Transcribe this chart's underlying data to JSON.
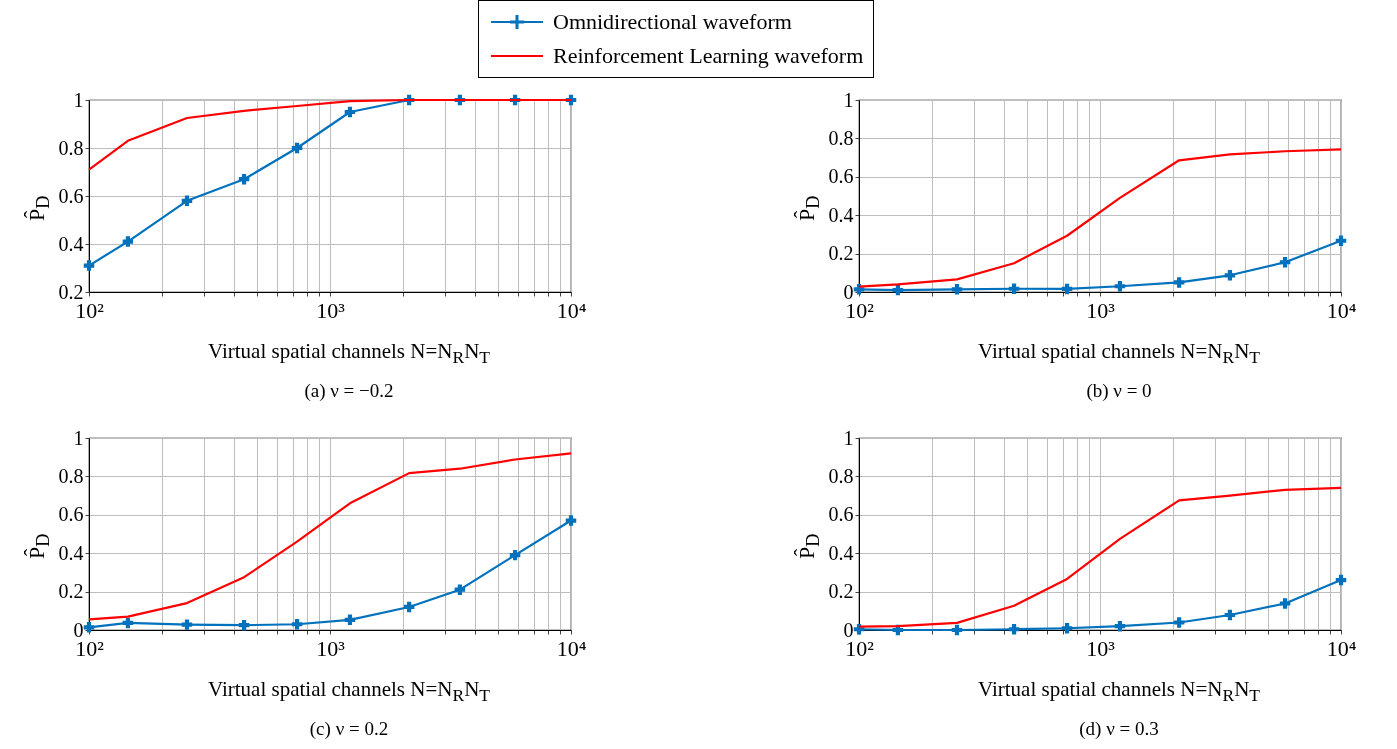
{
  "chart_data": [
    {
      "type": "line",
      "log": "x",
      "grid": true,
      "legend": "top",
      "xlabel": "Virtual spatial channels N=N$_{R}$N$_{T}$",
      "ylabel": "P̂$_{D}$",
      "annotations": [
        "(a) ν = −0.2"
      ],
      "xlim": [
        100,
        10000
      ],
      "xticks": [
        {
          "value": 100,
          "label": "10²"
        },
        {
          "value": 200,
          "label": null
        },
        {
          "value": 300,
          "label": null
        },
        {
          "value": 400,
          "label": null
        },
        {
          "value": 500,
          "label": null
        },
        {
          "value": 600,
          "label": null
        },
        {
          "value": 700,
          "label": null
        },
        {
          "value": 800,
          "label": null
        },
        {
          "value": 900,
          "label": null
        },
        {
          "value": 1000,
          "label": "10³"
        },
        {
          "value": 2000,
          "label": null
        },
        {
          "value": 3000,
          "label": null
        },
        {
          "value": 4000,
          "label": null
        },
        {
          "value": 5000,
          "label": null
        },
        {
          "value": 6000,
          "label": null
        },
        {
          "value": 7000,
          "label": null
        },
        {
          "value": 8000,
          "label": null
        },
        {
          "value": 9000,
          "label": null
        },
        {
          "value": 10000,
          "label": "10⁴"
        }
      ],
      "ylim": [
        0.2,
        1
      ],
      "yticks": [
        0.2,
        0.4,
        0.6,
        0.8,
        1
      ],
      "x": [
        100,
        145,
        255,
        440,
        730,
        1210,
        2130,
        3460,
        5860,
        10000
      ],
      "series": [
        {
          "name": "Omnidirectional waveform",
          "color": "#0072bd",
          "marker": "cross",
          "values": [
            0.31,
            0.41,
            0.58,
            0.67,
            0.8,
            0.95,
            1,
            1,
            1,
            1
          ]
        },
        {
          "name": "Reinforcement Learning waveform",
          "color": "#ff0000",
          "marker": "none",
          "values": [
            0.71,
            0.83,
            0.925,
            0.955,
            0.975,
            0.995,
            1,
            1,
            1,
            1
          ]
        }
      ]
    },
    {
      "type": "line",
      "log": "x",
      "grid": true,
      "xlabel": "Virtual spatial channels N=N$_{R}$N$_{T}$",
      "ylabel": "P̂$_{D}$",
      "annotations": [
        "(b) ν = 0"
      ],
      "xlim": [
        100,
        10000
      ],
      "xticks": [
        {
          "value": 100,
          "label": "10²"
        },
        {
          "value": 200,
          "label": null
        },
        {
          "value": 300,
          "label": null
        },
        {
          "value": 400,
          "label": null
        },
        {
          "value": 500,
          "label": null
        },
        {
          "value": 600,
          "label": null
        },
        {
          "value": 700,
          "label": null
        },
        {
          "value": 800,
          "label": null
        },
        {
          "value": 900,
          "label": null
        },
        {
          "value": 1000,
          "label": "10³"
        },
        {
          "value": 2000,
          "label": null
        },
        {
          "value": 3000,
          "label": null
        },
        {
          "value": 4000,
          "label": null
        },
        {
          "value": 5000,
          "label": null
        },
        {
          "value": 6000,
          "label": null
        },
        {
          "value": 7000,
          "label": null
        },
        {
          "value": 8000,
          "label": null
        },
        {
          "value": 9000,
          "label": null
        },
        {
          "value": 10000,
          "label": "10⁴"
        }
      ],
      "ylim": [
        0,
        1
      ],
      "yticks": [
        0,
        0.2,
        0.4,
        0.6,
        0.8,
        1
      ],
      "x": [
        100,
        145,
        255,
        440,
        730,
        1210,
        2130,
        3460,
        5860,
        10000
      ],
      "series": [
        {
          "color": "#0072bd",
          "marker": "cross",
          "values": [
            0.014,
            0.01,
            0.014,
            0.017,
            0.016,
            0.03,
            0.05,
            0.087,
            0.155,
            0.267
          ]
        },
        {
          "color": "#ff0000",
          "marker": "none",
          "values": [
            0.028,
            0.04,
            0.066,
            0.15,
            0.293,
            0.49,
            0.686,
            0.717,
            0.733,
            0.743
          ]
        }
      ]
    },
    {
      "type": "line",
      "log": "x",
      "grid": true,
      "xlabel": "Virtual spatial channels N=N$_{R}$N$_{T}$",
      "ylabel": "P̂$_{D}$",
      "annotations": [
        "(c) ν = 0.2"
      ],
      "xlim": [
        100,
        10000
      ],
      "xticks": [
        {
          "value": 100,
          "label": "10²"
        },
        {
          "value": 200,
          "label": null
        },
        {
          "value": 300,
          "label": null
        },
        {
          "value": 400,
          "label": null
        },
        {
          "value": 500,
          "label": null
        },
        {
          "value": 600,
          "label": null
        },
        {
          "value": 700,
          "label": null
        },
        {
          "value": 800,
          "label": null
        },
        {
          "value": 900,
          "label": null
        },
        {
          "value": 1000,
          "label": "10³"
        },
        {
          "value": 2000,
          "label": null
        },
        {
          "value": 3000,
          "label": null
        },
        {
          "value": 4000,
          "label": null
        },
        {
          "value": 5000,
          "label": null
        },
        {
          "value": 6000,
          "label": null
        },
        {
          "value": 7000,
          "label": null
        },
        {
          "value": 8000,
          "label": null
        },
        {
          "value": 9000,
          "label": null
        },
        {
          "value": 10000,
          "label": "10⁴"
        }
      ],
      "ylim": [
        0,
        1
      ],
      "yticks": [
        0,
        0.2,
        0.4,
        0.6,
        0.8,
        1
      ],
      "x": [
        100,
        145,
        255,
        440,
        730,
        1210,
        2130,
        3460,
        5860,
        10000
      ],
      "series": [
        {
          "color": "#0072bd",
          "marker": "cross",
          "values": [
            0.014,
            0.037,
            0.028,
            0.025,
            0.03,
            0.053,
            0.12,
            0.21,
            0.39,
            0.57
          ]
        },
        {
          "color": "#ff0000",
          "marker": "none",
          "values": [
            0.055,
            0.07,
            0.14,
            0.275,
            0.46,
            0.66,
            0.817,
            0.84,
            0.888,
            0.92
          ]
        }
      ]
    },
    {
      "type": "line",
      "log": "x",
      "grid": true,
      "xlabel": "Virtual spatial channels N=N$_{R}$N$_{T}$",
      "ylabel": "P̂$_{D}$",
      "annotations": [
        "(d) ν = 0.3"
      ],
      "xlim": [
        100,
        10000
      ],
      "xticks": [
        {
          "value": 100,
          "label": "10²"
        },
        {
          "value": 200,
          "label": null
        },
        {
          "value": 300,
          "label": null
        },
        {
          "value": 400,
          "label": null
        },
        {
          "value": 500,
          "label": null
        },
        {
          "value": 600,
          "label": null
        },
        {
          "value": 700,
          "label": null
        },
        {
          "value": 800,
          "label": null
        },
        {
          "value": 900,
          "label": null
        },
        {
          "value": 1000,
          "label": "10³"
        },
        {
          "value": 2000,
          "label": null
        },
        {
          "value": 3000,
          "label": null
        },
        {
          "value": 4000,
          "label": null
        },
        {
          "value": 5000,
          "label": null
        },
        {
          "value": 6000,
          "label": null
        },
        {
          "value": 7000,
          "label": null
        },
        {
          "value": 8000,
          "label": null
        },
        {
          "value": 9000,
          "label": null
        },
        {
          "value": 10000,
          "label": "10⁴"
        }
      ],
      "ylim": [
        0,
        1
      ],
      "yticks": [
        0,
        0.2,
        0.4,
        0.6,
        0.8,
        1
      ],
      "x": [
        100,
        145,
        255,
        440,
        730,
        1210,
        2130,
        3460,
        5860,
        10000
      ],
      "series": [
        {
          "color": "#0072bd",
          "marker": "cross",
          "values": [
            0.004,
            0,
            0,
            0.004,
            0.009,
            0.02,
            0.039,
            0.078,
            0.138,
            0.26
          ]
        },
        {
          "color": "#ff0000",
          "marker": "none",
          "values": [
            0.018,
            0.02,
            0.037,
            0.126,
            0.266,
            0.475,
            0.675,
            0.7,
            0.73,
            0.74
          ]
        }
      ]
    }
  ]
}
